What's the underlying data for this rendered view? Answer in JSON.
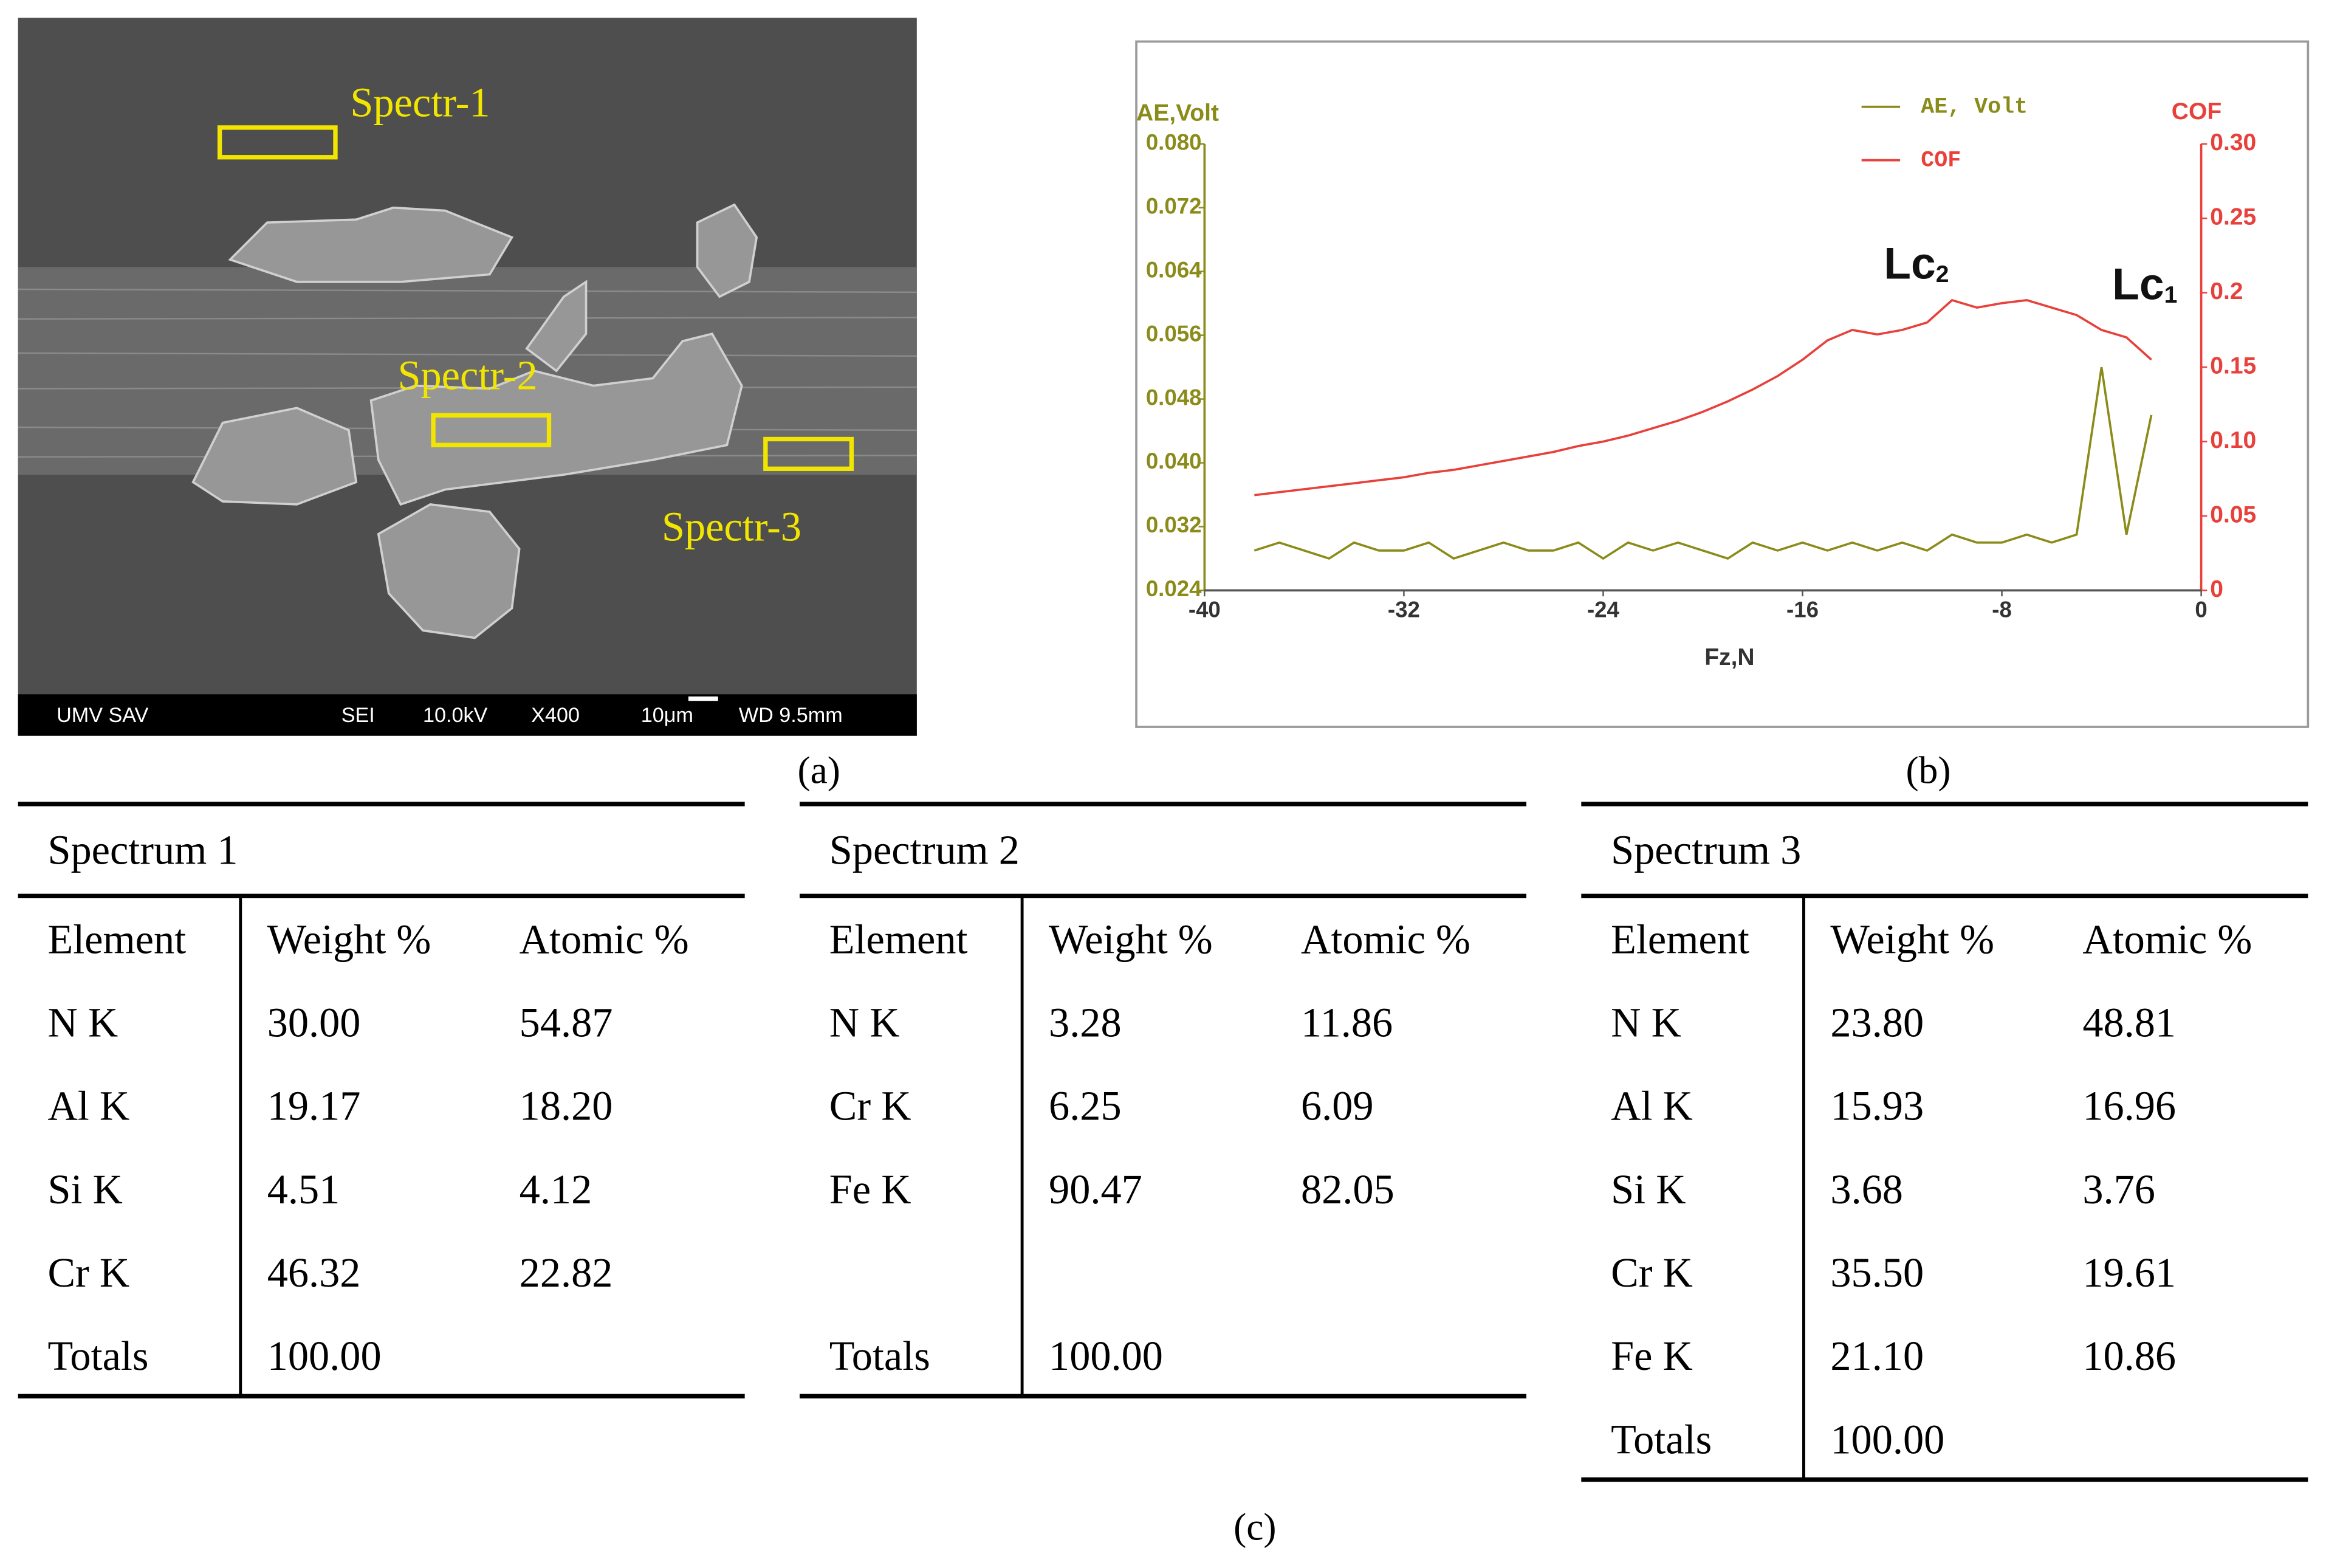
{
  "panel_a": {
    "labels": [
      "Spectr-1",
      "Spectr-2",
      "Spectr-3"
    ],
    "info_bar": [
      "UMV SAV",
      "SEI",
      "10.0kV",
      "X400",
      "10μm",
      "WD 9.5mm"
    ]
  },
  "chart_data": {
    "type": "line",
    "y_label": "AE,Volt",
    "y2_label": "COF",
    "x_label": "Fz,N",
    "annotations": [
      {
        "text": "Lc",
        "subscript": "2"
      },
      {
        "text": "Lc",
        "subscript": "1"
      }
    ],
    "legend": "top-right",
    "x": [
      -38,
      -37,
      -36,
      -35,
      -34,
      -33,
      -32,
      -31,
      -30,
      -29,
      -28,
      -27,
      -26,
      -25,
      -24,
      -23,
      -22,
      -21,
      -20,
      -19,
      -18,
      -17,
      -16,
      -15,
      -14,
      -13,
      -12,
      -11,
      -10,
      -9,
      -8,
      -7,
      -6,
      -5,
      -4,
      -3,
      -2
    ],
    "series": [
      {
        "name": "AE, Volt",
        "color": "#8b8b1a",
        "values": [
          0.029,
          0.03,
          0.029,
          0.028,
          0.03,
          0.029,
          0.029,
          0.03,
          0.028,
          0.029,
          0.03,
          0.029,
          0.029,
          0.03,
          0.028,
          0.03,
          0.029,
          0.03,
          0.029,
          0.028,
          0.03,
          0.029,
          0.03,
          0.029,
          0.03,
          0.029,
          0.03,
          0.029,
          0.031,
          0.03,
          0.03,
          0.031,
          0.03,
          0.031,
          0.052,
          0.031,
          0.046
        ]
      },
      {
        "name": "COF",
        "color": "#e8403a",
        "axis": "y2",
        "values": [
          0.064,
          0.066,
          0.068,
          0.07,
          0.072,
          0.074,
          0.076,
          0.079,
          0.081,
          0.084,
          0.087,
          0.09,
          0.093,
          0.097,
          0.1,
          0.104,
          0.109,
          0.114,
          0.12,
          0.127,
          0.135,
          0.144,
          0.155,
          0.168,
          0.175,
          0.172,
          0.175,
          0.18,
          0.195,
          0.19,
          0.193,
          0.195,
          0.19,
          0.185,
          0.175,
          0.17,
          0.155
        ]
      }
    ],
    "xlim": [
      -40,
      0
    ],
    "xticks": [
      -40,
      -32,
      -24,
      -16,
      -8,
      0
    ],
    "ylim": [
      0.024,
      0.08
    ],
    "yticks": [
      0.024,
      {
        "value": 0.032,
        "label": "0.032"
      },
      {
        "value": 0.04,
        "label": "0.040"
      },
      0.048,
      0.056,
      0.064,
      0.072,
      {
        "value": 0.08,
        "label": "0.080"
      }
    ],
    "y2lim": [
      0,
      0.3
    ],
    "y2ticks": [
      0,
      0.05,
      {
        "value": 0.1,
        "label": "0.10"
      },
      0.15,
      0.2,
      0.25,
      {
        "value": 0.3,
        "label": "0.30"
      }
    ]
  },
  "captions": [
    "(a)",
    "(b)",
    "(c)"
  ],
  "tables": [
    {
      "title": "Spectrum 1",
      "header": [
        "Element",
        "Weight %",
        "Atomic %"
      ],
      "rows": [
        [
          "N K",
          "30.00",
          "54.87"
        ],
        [
          "Al K",
          "19.17",
          "18.20"
        ],
        [
          "Si K",
          "4.51",
          "4.12"
        ],
        [
          "Cr K",
          "46.32",
          "22.82"
        ],
        [
          "Totals",
          "100.00"
        ]
      ]
    },
    {
      "title": "Spectrum 2",
      "header": [
        "Element",
        "Weight %",
        "Atomic %"
      ],
      "rows": [
        [
          "N K",
          "3.28",
          "11.86"
        ],
        [
          "Cr K",
          "6.25",
          "6.09"
        ],
        [
          "Fe K",
          "90.47",
          "82.05"
        ],
        null,
        [
          "Totals",
          "100.00"
        ]
      ]
    },
    {
      "title": "Spectrum 3",
      "header": [
        "Element",
        "Weight %",
        "Atomic %"
      ],
      "rows": [
        [
          "N K",
          "23.80",
          "48.81"
        ],
        [
          "Al K",
          "15.93",
          "16.96"
        ],
        [
          "Si K",
          "3.68",
          "3.76"
        ],
        [
          "Cr K",
          "35.50",
          "19.61"
        ],
        [
          "Fe K",
          "21.10",
          "10.86"
        ],
        [
          "Totals",
          "100.00"
        ]
      ]
    }
  ]
}
